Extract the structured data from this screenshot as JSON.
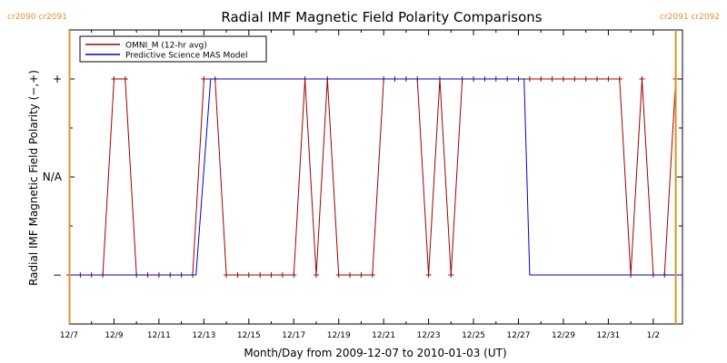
{
  "chart_data": {
    "type": "line",
    "title": "Radial IMF Magnetic Field Polarity Comparisons",
    "xlabel": "Month/Day from 2009-12-07 to 2010-01-03 (UT)",
    "ylabel": "Radial IMF Magnetic Field Polarity (−,+)",
    "x_unit": "days since 2009-12-07 00:00 UT",
    "xlim": [
      0,
      27.3
    ],
    "ylim": [
      -1.5,
      1.5
    ],
    "x_ticks": [
      {
        "x": 0,
        "label": "12/7"
      },
      {
        "x": 2,
        "label": "12/9"
      },
      {
        "x": 4,
        "label": "12/11"
      },
      {
        "x": 6,
        "label": "12/13"
      },
      {
        "x": 8,
        "label": "12/15"
      },
      {
        "x": 10,
        "label": "12/17"
      },
      {
        "x": 12,
        "label": "12/19"
      },
      {
        "x": 14,
        "label": "12/21"
      },
      {
        "x": 16,
        "label": "12/23"
      },
      {
        "x": 18,
        "label": "12/25"
      },
      {
        "x": 20,
        "label": "12/27"
      },
      {
        "x": 22,
        "label": "12/29"
      },
      {
        "x": 24,
        "label": "12/31"
      },
      {
        "x": 26,
        "label": "1/2"
      }
    ],
    "y_ticks": [
      {
        "y": 1,
        "label": "+"
      },
      {
        "y": 0,
        "label": "N/A"
      },
      {
        "y": -1,
        "label": "−"
      }
    ],
    "carrington_markers": [
      {
        "x": 0.02,
        "label": "cr2090 cr2091"
      },
      {
        "x": 27.0,
        "label": "cr2091 cr2092"
      }
    ],
    "legend_position": "top-left",
    "series": [
      {
        "name": "OMNI_M (12-hr avg)",
        "color": "#a00000",
        "markers": true,
        "x": [
          0,
          0.5,
          1,
          1.5,
          2,
          2.5,
          3,
          3.5,
          4,
          4.5,
          5,
          5.5,
          6,
          6.5,
          7,
          7.5,
          8,
          8.5,
          9,
          9.5,
          10,
          10.5,
          11,
          11.5,
          12,
          12.5,
          13,
          13.5,
          14,
          14.5,
          15,
          15.5,
          16,
          16.5,
          17,
          17.5,
          18,
          18.5,
          19,
          19.5,
          20,
          20.5,
          21,
          21.5,
          22,
          22.5,
          23,
          23.5,
          24,
          24.5,
          25,
          25.5,
          26,
          26.5,
          27
        ],
        "values": [
          -1,
          -1,
          -1,
          -1,
          1,
          1,
          -1,
          -1,
          -1,
          -1,
          -1,
          -1,
          1,
          1,
          -1,
          -1,
          -1,
          -1,
          -1,
          -1,
          -1,
          1,
          -1,
          1,
          -1,
          -1,
          -1,
          -1,
          1,
          1,
          1,
          1,
          -1,
          1,
          -1,
          1,
          1,
          1,
          1,
          1,
          1,
          1,
          1,
          1,
          1,
          1,
          1,
          1,
          1,
          1,
          -1,
          1,
          -1,
          -1,
          1
        ]
      },
      {
        "name": "Predictive Science MAS Model",
        "color": "#0000cc",
        "markers": false,
        "x": [
          0,
          5.65,
          6.3,
          20.25,
          20.5,
          27.3
        ],
        "values": [
          -1,
          -1,
          1,
          1,
          -1,
          -1
        ]
      }
    ]
  }
}
